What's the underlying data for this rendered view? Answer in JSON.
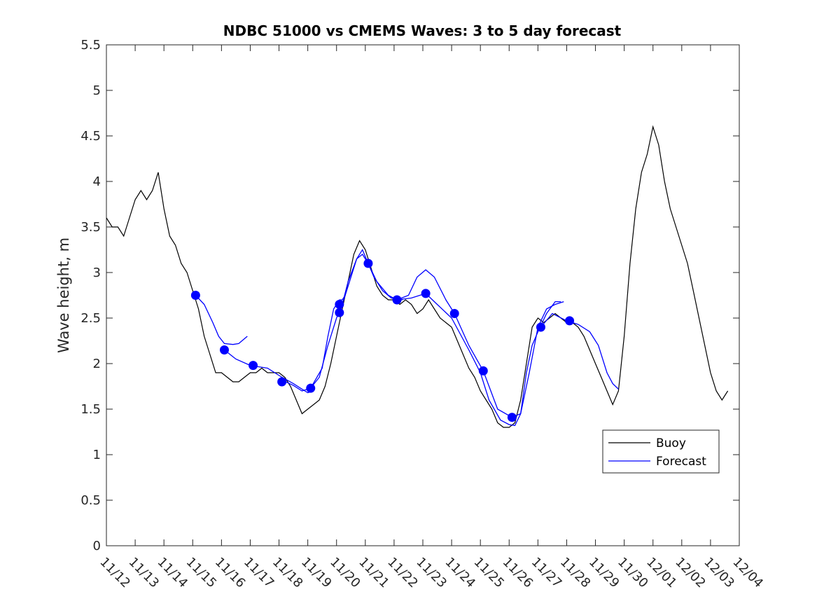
{
  "chart_data": {
    "type": "line",
    "title": "NDBC 51000 vs CMEMS Waves: 3 to 5 day forecast",
    "xlabel": "",
    "ylabel": "Wave height, m",
    "xlim": [
      0,
      22
    ],
    "ylim": [
      0,
      5.5
    ],
    "x_tick_labels": [
      "11/12",
      "11/13",
      "11/14",
      "11/15",
      "11/16",
      "11/17",
      "11/18",
      "11/19",
      "11/20",
      "11/21",
      "11/22",
      "11/23",
      "11/24",
      "11/25",
      "11/26",
      "11/27",
      "11/28",
      "11/29",
      "11/30",
      "12/01",
      "12/02",
      "12/03",
      "12/04"
    ],
    "y_ticks": [
      0,
      0.5,
      1,
      1.5,
      2,
      2.5,
      3,
      3.5,
      4,
      4.5,
      5,
      5.5
    ],
    "y_tick_labels": [
      "0",
      "0.5",
      "1",
      "1.5",
      "2",
      "2.5",
      "3",
      "3.5",
      "4",
      "4.5",
      "5",
      "5.5"
    ],
    "x_units": "days from 11/12",
    "grid": false,
    "legend_position": "bottom-right",
    "series": [
      {
        "name": "Buoy",
        "color": "#000000",
        "points": [
          [
            0.0,
            3.6
          ],
          [
            0.2,
            3.5
          ],
          [
            0.4,
            3.5
          ],
          [
            0.6,
            3.4
          ],
          [
            0.8,
            3.6
          ],
          [
            1.0,
            3.8
          ],
          [
            1.2,
            3.9
          ],
          [
            1.4,
            3.8
          ],
          [
            1.6,
            3.9
          ],
          [
            1.8,
            4.1
          ],
          [
            2.0,
            3.7
          ],
          [
            2.2,
            3.4
          ],
          [
            2.4,
            3.3
          ],
          [
            2.6,
            3.1
          ],
          [
            2.8,
            3.0
          ],
          [
            3.0,
            2.8
          ],
          [
            3.2,
            2.6
          ],
          [
            3.4,
            2.3
          ],
          [
            3.6,
            2.1
          ],
          [
            3.8,
            1.9
          ],
          [
            4.0,
            1.9
          ],
          [
            4.2,
            1.85
          ],
          [
            4.4,
            1.8
          ],
          [
            4.6,
            1.8
          ],
          [
            4.8,
            1.85
          ],
          [
            5.0,
            1.9
          ],
          [
            5.2,
            1.9
          ],
          [
            5.4,
            1.95
          ],
          [
            5.6,
            1.9
          ],
          [
            5.8,
            1.9
          ],
          [
            6.0,
            1.9
          ],
          [
            6.2,
            1.85
          ],
          [
            6.4,
            1.75
          ],
          [
            6.6,
            1.6
          ],
          [
            6.8,
            1.45
          ],
          [
            7.0,
            1.5
          ],
          [
            7.2,
            1.55
          ],
          [
            7.4,
            1.6
          ],
          [
            7.6,
            1.75
          ],
          [
            7.8,
            2.0
          ],
          [
            8.0,
            2.3
          ],
          [
            8.2,
            2.6
          ],
          [
            8.4,
            2.9
          ],
          [
            8.6,
            3.2
          ],
          [
            8.8,
            3.35
          ],
          [
            9.0,
            3.25
          ],
          [
            9.2,
            3.05
          ],
          [
            9.4,
            2.85
          ],
          [
            9.6,
            2.75
          ],
          [
            9.8,
            2.7
          ],
          [
            10.0,
            2.7
          ],
          [
            10.2,
            2.65
          ],
          [
            10.4,
            2.7
          ],
          [
            10.6,
            2.65
          ],
          [
            10.8,
            2.55
          ],
          [
            11.0,
            2.6
          ],
          [
            11.2,
            2.7
          ],
          [
            11.4,
            2.6
          ],
          [
            11.6,
            2.5
          ],
          [
            11.8,
            2.45
          ],
          [
            12.0,
            2.4
          ],
          [
            12.2,
            2.25
          ],
          [
            12.4,
            2.1
          ],
          [
            12.6,
            1.95
          ],
          [
            12.8,
            1.85
          ],
          [
            13.0,
            1.7
          ],
          [
            13.2,
            1.6
          ],
          [
            13.4,
            1.5
          ],
          [
            13.6,
            1.35
          ],
          [
            13.8,
            1.3
          ],
          [
            14.0,
            1.3
          ],
          [
            14.2,
            1.35
          ],
          [
            14.4,
            1.6
          ],
          [
            14.6,
            2.0
          ],
          [
            14.8,
            2.4
          ],
          [
            15.0,
            2.5
          ],
          [
            15.2,
            2.45
          ],
          [
            15.4,
            2.5
          ],
          [
            15.6,
            2.55
          ],
          [
            15.8,
            2.5
          ],
          [
            16.0,
            2.45
          ],
          [
            16.2,
            2.45
          ],
          [
            16.4,
            2.4
          ],
          [
            16.6,
            2.3
          ],
          [
            16.8,
            2.15
          ],
          [
            17.0,
            2.0
          ],
          [
            17.2,
            1.85
          ],
          [
            17.4,
            1.7
          ],
          [
            17.6,
            1.55
          ],
          [
            17.8,
            1.7
          ],
          [
            18.0,
            2.3
          ],
          [
            18.2,
            3.1
          ],
          [
            18.4,
            3.7
          ],
          [
            18.6,
            4.1
          ],
          [
            18.8,
            4.3
          ],
          [
            19.0,
            4.6
          ],
          [
            19.2,
            4.4
          ],
          [
            19.4,
            4.0
          ],
          [
            19.6,
            3.7
          ],
          [
            19.8,
            3.5
          ],
          [
            20.0,
            3.3
          ],
          [
            20.2,
            3.1
          ],
          [
            20.4,
            2.8
          ],
          [
            20.6,
            2.5
          ],
          [
            20.8,
            2.2
          ],
          [
            21.0,
            1.9
          ],
          [
            21.2,
            1.7
          ],
          [
            21.4,
            1.6
          ],
          [
            21.6,
            1.7
          ]
        ]
      },
      {
        "name": "Forecast",
        "color": "#0000ff",
        "segments": [
          [
            [
              3.1,
              2.75
            ],
            [
              3.4,
              2.65
            ],
            [
              3.7,
              2.45
            ],
            [
              3.9,
              2.3
            ],
            [
              4.1,
              2.22
            ],
            [
              4.4,
              2.21
            ],
            [
              4.6,
              2.22
            ],
            [
              4.9,
              2.3
            ]
          ],
          [
            [
              4.1,
              2.15
            ],
            [
              4.5,
              2.05
            ],
            [
              5.0,
              1.98
            ],
            [
              5.6,
              1.95
            ],
            [
              6.1,
              1.85
            ],
            [
              6.5,
              1.78
            ],
            [
              6.8,
              1.72
            ],
            [
              7.0,
              1.68
            ],
            [
              7.2,
              1.7
            ]
          ],
          [
            [
              6.1,
              1.82
            ],
            [
              6.5,
              1.76
            ],
            [
              6.8,
              1.7
            ],
            [
              7.1,
              1.73
            ],
            [
              7.5,
              1.95
            ],
            [
              7.7,
              2.3
            ],
            [
              7.9,
              2.6
            ],
            [
              8.1,
              2.7
            ],
            [
              8.2,
              2.7
            ],
            [
              8.3,
              2.75
            ]
          ],
          [
            [
              7.1,
              1.73
            ],
            [
              7.4,
              1.85
            ],
            [
              7.7,
              2.2
            ],
            [
              8.0,
              2.5
            ],
            [
              8.2,
              2.65
            ],
            [
              8.4,
              2.9
            ],
            [
              8.7,
              3.15
            ],
            [
              8.9,
              3.2
            ],
            [
              9.1,
              3.1
            ]
          ],
          [
            [
              8.1,
              2.56
            ],
            [
              8.3,
              2.75
            ],
            [
              8.5,
              2.95
            ],
            [
              8.7,
              3.15
            ],
            [
              8.9,
              3.25
            ],
            [
              9.1,
              3.1
            ],
            [
              9.3,
              2.95
            ],
            [
              9.6,
              2.8
            ],
            [
              9.9,
              2.72
            ],
            [
              10.3,
              2.7
            ]
          ],
          [
            [
              9.1,
              3.1
            ],
            [
              9.4,
              2.9
            ],
            [
              9.8,
              2.75
            ],
            [
              10.1,
              2.7
            ],
            [
              10.5,
              2.75
            ],
            [
              10.8,
              2.95
            ],
            [
              11.1,
              3.03
            ],
            [
              11.4,
              2.95
            ],
            [
              11.8,
              2.7
            ],
            [
              12.1,
              2.55
            ]
          ],
          [
            [
              10.1,
              2.7
            ],
            [
              10.6,
              2.72
            ],
            [
              11.1,
              2.77
            ],
            [
              11.5,
              2.65
            ],
            [
              12.0,
              2.5
            ],
            [
              12.6,
              2.15
            ],
            [
              13.0,
              1.9
            ],
            [
              13.3,
              1.6
            ],
            [
              13.7,
              1.38
            ],
            [
              14.0,
              1.33
            ],
            [
              14.2,
              1.32
            ],
            [
              14.4,
              1.45
            ],
            [
              14.6,
              1.9
            ],
            [
              14.8,
              2.2
            ],
            [
              15.0,
              2.35
            ],
            [
              15.3,
              2.55
            ],
            [
              15.6,
              2.68
            ],
            [
              15.8,
              2.68
            ]
          ],
          [
            [
              12.1,
              2.55
            ],
            [
              12.6,
              2.2
            ],
            [
              13.1,
              1.92
            ],
            [
              13.6,
              1.5
            ],
            [
              14.1,
              1.41
            ],
            [
              14.4,
              1.45
            ],
            [
              14.7,
              1.9
            ],
            [
              15.0,
              2.4
            ],
            [
              15.3,
              2.6
            ],
            [
              15.6,
              2.65
            ],
            [
              15.9,
              2.68
            ]
          ],
          [
            [
              15.1,
              2.4
            ],
            [
              15.5,
              2.55
            ],
            [
              16.0,
              2.47
            ],
            [
              16.4,
              2.43
            ],
            [
              16.8,
              2.35
            ],
            [
              17.1,
              2.2
            ],
            [
              17.4,
              1.9
            ],
            [
              17.6,
              1.78
            ],
            [
              17.8,
              1.72
            ]
          ]
        ],
        "markers": [
          [
            3.1,
            2.75
          ],
          [
            4.1,
            2.15
          ],
          [
            5.1,
            1.98
          ],
          [
            6.1,
            1.8
          ],
          [
            7.1,
            1.73
          ],
          [
            8.1,
            2.65
          ],
          [
            8.1,
            2.56
          ],
          [
            9.1,
            3.1
          ],
          [
            10.1,
            2.7
          ],
          [
            11.1,
            2.77
          ],
          [
            12.1,
            2.55
          ],
          [
            13.1,
            1.92
          ],
          [
            14.1,
            1.41
          ],
          [
            15.1,
            2.4
          ],
          [
            16.1,
            2.47
          ]
        ]
      }
    ]
  }
}
